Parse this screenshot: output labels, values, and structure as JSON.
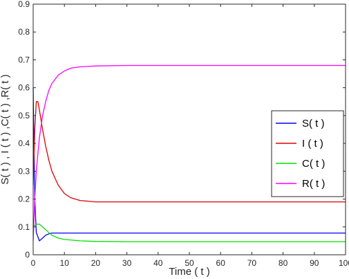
{
  "chart_data": {
    "type": "line",
    "xlabel": "Time ( t )",
    "ylabel": "S( t ) , I ( t ) ,C( t ) ,R( t )",
    "xlim": [
      0,
      100
    ],
    "ylim": [
      0,
      0.9
    ],
    "xticks": [
      "0",
      "10",
      "20",
      "30",
      "40",
      "50",
      "60",
      "70",
      "80",
      "90",
      "100"
    ],
    "yticks": [
      "0",
      "0.1",
      "0.2",
      "0.3",
      "0.4",
      "0.5",
      "0.6",
      "0.7",
      "0.8",
      "0.9"
    ],
    "grid": false,
    "legend_position": "right",
    "series": [
      {
        "name": "S( t )",
        "color": "#0000ff",
        "x": [
          0,
          0.5,
          1,
          2,
          3,
          4,
          5,
          6,
          8,
          10,
          15,
          20,
          30,
          40,
          50,
          60,
          70,
          80,
          90,
          100
        ],
        "y": [
          0.6,
          0.2,
          0.08,
          0.05,
          0.06,
          0.07,
          0.075,
          0.078,
          0.078,
          0.078,
          0.078,
          0.078,
          0.078,
          0.078,
          0.078,
          0.078,
          0.078,
          0.078,
          0.078,
          0.078
        ]
      },
      {
        "name": "I ( t )",
        "color": "#e00000",
        "x": [
          0,
          0.5,
          1,
          1.5,
          2,
          3,
          4,
          5,
          6,
          8,
          10,
          12,
          15,
          20,
          30,
          40,
          50,
          60,
          70,
          80,
          90,
          100
        ],
        "y": [
          0.25,
          0.45,
          0.55,
          0.55,
          0.52,
          0.45,
          0.39,
          0.34,
          0.3,
          0.25,
          0.22,
          0.205,
          0.195,
          0.19,
          0.19,
          0.19,
          0.19,
          0.19,
          0.19,
          0.19,
          0.19,
          0.19
        ]
      },
      {
        "name": "C( t )",
        "color": "#00e000",
        "x": [
          0,
          0.5,
          1,
          2,
          3,
          4,
          5,
          6,
          8,
          10,
          15,
          20,
          30,
          40,
          50,
          60,
          70,
          80,
          90,
          100
        ],
        "y": [
          0.1,
          0.105,
          0.11,
          0.11,
          0.1,
          0.09,
          0.08,
          0.07,
          0.06,
          0.055,
          0.05,
          0.048,
          0.047,
          0.047,
          0.047,
          0.047,
          0.047,
          0.047,
          0.047,
          0.047
        ]
      },
      {
        "name": "R( t )",
        "color": "#ff00ff",
        "x": [
          0,
          0.5,
          1,
          2,
          3,
          4,
          5,
          6,
          8,
          10,
          12,
          15,
          20,
          30,
          40,
          50,
          60,
          70,
          80,
          90,
          100
        ],
        "y": [
          0.05,
          0.2,
          0.3,
          0.42,
          0.5,
          0.55,
          0.59,
          0.615,
          0.645,
          0.66,
          0.67,
          0.675,
          0.678,
          0.68,
          0.68,
          0.68,
          0.68,
          0.68,
          0.68,
          0.68,
          0.68
        ]
      }
    ]
  }
}
